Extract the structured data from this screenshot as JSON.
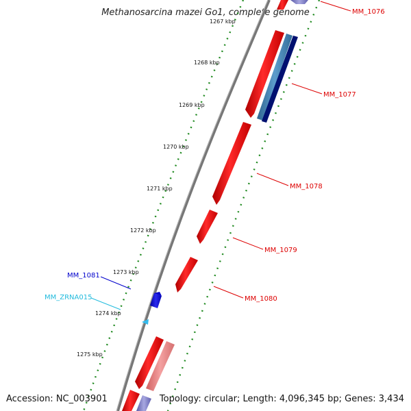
{
  "title": "Methanosarcina mazei Go1, complete genome",
  "footer": {
    "accession": "Accession: NC_003901",
    "stats": "Topology: circular; Length: 4,096,345 bp; Genes: 3,434"
  },
  "ruler": {
    "ticks": [
      "1267 kbp",
      "1268 kbp",
      "1269 kbp",
      "1270 kbp",
      "1271 kbp",
      "1272 kbp",
      "1273 kbp",
      "1274 kbp",
      "1275 kbp"
    ]
  },
  "colors": {
    "forward_gene": "#ff1a1a",
    "rna_gene": "#f08080",
    "pseudo_gene": "#7f7fcc",
    "blue_gene": "#1818cc",
    "ncrna": "#33bbee",
    "cds_steel": "#4682b4",
    "cds_navy": "#000080",
    "backbone": "#777777",
    "gc_dots": "#228b22"
  },
  "genes": [
    {
      "id": "MM_1076",
      "label": "MM_1076",
      "color": "#dd0000"
    },
    {
      "id": "MM_1077",
      "label": "MM_1077",
      "color": "#dd0000"
    },
    {
      "id": "MM_1078",
      "label": "MM_1078",
      "color": "#dd0000"
    },
    {
      "id": "MM_1079",
      "label": "MM_1079",
      "color": "#dd0000"
    },
    {
      "id": "MM_1080",
      "label": "MM_1080",
      "color": "#dd0000"
    },
    {
      "id": "MM_1081",
      "label": "MM_1081",
      "color": "#0000cc"
    },
    {
      "id": "MM_ZRNA015",
      "label": "MM_ZRNA015",
      "color": "#22bbdd"
    }
  ]
}
